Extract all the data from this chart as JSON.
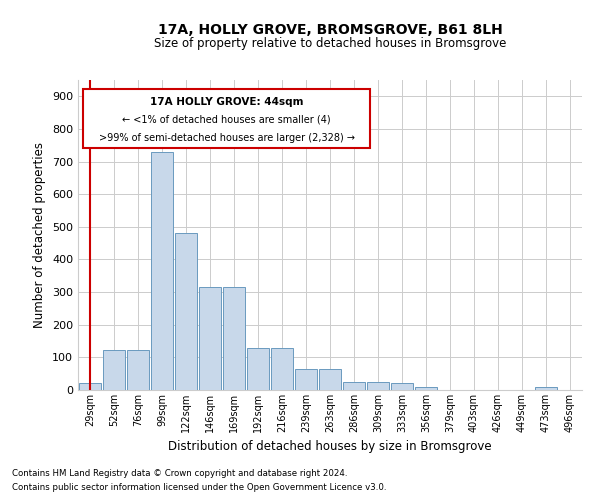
{
  "title": "17A, HOLLY GROVE, BROMSGROVE, B61 8LH",
  "subtitle": "Size of property relative to detached houses in Bromsgrove",
  "xlabel": "Distribution of detached houses by size in Bromsgrove",
  "ylabel": "Number of detached properties",
  "footer1": "Contains HM Land Registry data © Crown copyright and database right 2024.",
  "footer2": "Contains public sector information licensed under the Open Government Licence v3.0.",
  "annotation_title": "17A HOLLY GROVE: 44sqm",
  "annotation_line1": "← <1% of detached houses are smaller (4)",
  "annotation_line2": ">99% of semi-detached houses are larger (2,328) →",
  "bar_color": "#c8d8ea",
  "bar_edge_color": "#6a9abf",
  "annotation_box_color": "#ffffff",
  "annotation_box_edge": "#cc0000",
  "ref_line_color": "#cc0000",
  "grid_color": "#cccccc",
  "categories": [
    "29sqm",
    "52sqm",
    "76sqm",
    "99sqm",
    "122sqm",
    "146sqm",
    "169sqm",
    "192sqm",
    "216sqm",
    "239sqm",
    "263sqm",
    "286sqm",
    "309sqm",
    "333sqm",
    "356sqm",
    "379sqm",
    "403sqm",
    "426sqm",
    "449sqm",
    "473sqm",
    "496sqm"
  ],
  "values": [
    20,
    122,
    122,
    730,
    480,
    315,
    315,
    130,
    130,
    65,
    65,
    25,
    25,
    20,
    10,
    0,
    0,
    0,
    0,
    10,
    0
  ],
  "ylim": [
    0,
    950
  ],
  "yticks": [
    0,
    100,
    200,
    300,
    400,
    500,
    600,
    700,
    800,
    900
  ],
  "figsize": [
    6.0,
    5.0
  ],
  "dpi": 100
}
